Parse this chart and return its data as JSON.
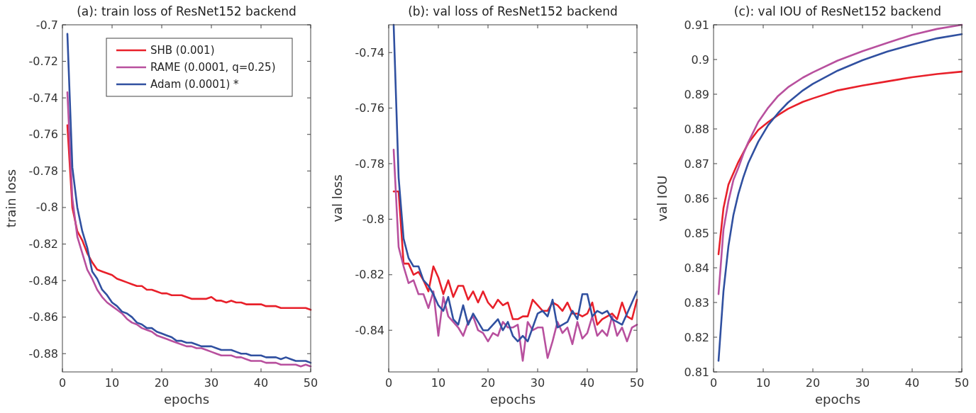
{
  "chart_data": [
    {
      "type": "line",
      "title": "(a): train loss of ResNet152 backend",
      "xlabel": "epochs",
      "ylabel": "train loss",
      "xlim": [
        0,
        50
      ],
      "xticks": [
        0,
        10,
        20,
        30,
        40,
        50
      ],
      "ylim": [
        -0.89,
        -0.7
      ],
      "yticks": [
        -0.88,
        -0.86,
        -0.84,
        -0.82,
        -0.8,
        -0.78,
        -0.76,
        -0.74,
        -0.72,
        -0.7
      ],
      "legend": "top right",
      "x": [
        1,
        2,
        3,
        4,
        5,
        6,
        7,
        8,
        9,
        10,
        11,
        12,
        13,
        14,
        15,
        16,
        17,
        18,
        19,
        20,
        21,
        22,
        23,
        24,
        25,
        26,
        27,
        28,
        29,
        30,
        31,
        32,
        33,
        34,
        35,
        36,
        37,
        38,
        39,
        40,
        41,
        42,
        43,
        44,
        45,
        46,
        47,
        48,
        49,
        50
      ],
      "series": [
        {
          "name": "SHB (0.001)",
          "color": "#e8202a",
          "values": [
            -0.755,
            -0.8,
            -0.813,
            -0.818,
            -0.825,
            -0.83,
            -0.834,
            -0.835,
            -0.836,
            -0.837,
            -0.839,
            -0.84,
            -0.841,
            -0.842,
            -0.843,
            -0.843,
            -0.845,
            -0.845,
            -0.846,
            -0.847,
            -0.847,
            -0.848,
            -0.848,
            -0.848,
            -0.849,
            -0.85,
            -0.85,
            -0.85,
            -0.85,
            -0.849,
            -0.851,
            -0.851,
            -0.852,
            -0.851,
            -0.852,
            -0.852,
            -0.853,
            -0.853,
            -0.853,
            -0.853,
            -0.854,
            -0.854,
            -0.854,
            -0.855,
            -0.855,
            -0.855,
            -0.855,
            -0.855,
            -0.855,
            -0.856
          ]
        },
        {
          "name": "RAME (0.0001, q=0.25)",
          "color": "#b8509e",
          "values": [
            -0.737,
            -0.795,
            -0.816,
            -0.825,
            -0.834,
            -0.839,
            -0.845,
            -0.849,
            -0.852,
            -0.854,
            -0.856,
            -0.858,
            -0.861,
            -0.863,
            -0.864,
            -0.866,
            -0.867,
            -0.868,
            -0.87,
            -0.871,
            -0.872,
            -0.873,
            -0.874,
            -0.875,
            -0.876,
            -0.876,
            -0.877,
            -0.877,
            -0.878,
            -0.879,
            -0.88,
            -0.881,
            -0.881,
            -0.881,
            -0.882,
            -0.882,
            -0.883,
            -0.884,
            -0.884,
            -0.884,
            -0.885,
            -0.885,
            -0.885,
            -0.886,
            -0.886,
            -0.886,
            -0.886,
            -0.887,
            -0.886,
            -0.887
          ]
        },
        {
          "name": "Adam (0.0001) *",
          "color": "#3050a0",
          "values": [
            -0.705,
            -0.778,
            -0.8,
            -0.813,
            -0.822,
            -0.835,
            -0.839,
            -0.845,
            -0.848,
            -0.852,
            -0.854,
            -0.857,
            -0.858,
            -0.86,
            -0.863,
            -0.864,
            -0.866,
            -0.866,
            -0.868,
            -0.869,
            -0.87,
            -0.871,
            -0.873,
            -0.873,
            -0.874,
            -0.874,
            -0.875,
            -0.876,
            -0.876,
            -0.876,
            -0.877,
            -0.878,
            -0.878,
            -0.878,
            -0.879,
            -0.88,
            -0.88,
            -0.881,
            -0.881,
            -0.881,
            -0.882,
            -0.882,
            -0.882,
            -0.883,
            -0.882,
            -0.883,
            -0.884,
            -0.884,
            -0.884,
            -0.885
          ]
        }
      ]
    },
    {
      "type": "line",
      "title": "(b): val loss of ResNet152 backend",
      "xlabel": "epochs",
      "ylabel": "val loss",
      "xlim": [
        0,
        50
      ],
      "xticks": [
        0,
        10,
        20,
        30,
        40,
        50
      ],
      "ylim": [
        -0.855,
        -0.73
      ],
      "yticks": [
        -0.84,
        -0.82,
        -0.8,
        -0.78,
        -0.76,
        -0.74
      ],
      "x": [
        1,
        2,
        3,
        4,
        5,
        6,
        7,
        8,
        9,
        10,
        11,
        12,
        13,
        14,
        15,
        16,
        17,
        18,
        19,
        20,
        21,
        22,
        23,
        24,
        25,
        26,
        27,
        28,
        29,
        30,
        31,
        32,
        33,
        34,
        35,
        36,
        37,
        38,
        39,
        40,
        41,
        42,
        43,
        44,
        45,
        46,
        47,
        48,
        49,
        50
      ],
      "series": [
        {
          "color": "#e8202a",
          "values": [
            -0.79,
            -0.79,
            -0.816,
            -0.816,
            -0.82,
            -0.819,
            -0.822,
            -0.826,
            -0.817,
            -0.821,
            -0.827,
            -0.822,
            -0.828,
            -0.824,
            -0.824,
            -0.829,
            -0.826,
            -0.83,
            -0.826,
            -0.83,
            -0.832,
            -0.829,
            -0.831,
            -0.83,
            -0.836,
            -0.836,
            -0.835,
            -0.835,
            -0.829,
            -0.831,
            -0.833,
            -0.833,
            -0.83,
            -0.831,
            -0.833,
            -0.83,
            -0.834,
            -0.834,
            -0.835,
            -0.834,
            -0.83,
            -0.838,
            -0.836,
            -0.835,
            -0.834,
            -0.836,
            -0.83,
            -0.835,
            -0.836,
            -0.829
          ]
        },
        {
          "color": "#b8509e",
          "values": [
            -0.775,
            -0.81,
            -0.817,
            -0.823,
            -0.822,
            -0.827,
            -0.827,
            -0.832,
            -0.826,
            -0.842,
            -0.828,
            -0.835,
            -0.837,
            -0.839,
            -0.842,
            -0.837,
            -0.835,
            -0.84,
            -0.841,
            -0.844,
            -0.841,
            -0.842,
            -0.837,
            -0.839,
            -0.839,
            -0.838,
            -0.851,
            -0.837,
            -0.84,
            -0.839,
            -0.839,
            -0.85,
            -0.844,
            -0.837,
            -0.841,
            -0.839,
            -0.845,
            -0.837,
            -0.843,
            -0.841,
            -0.835,
            -0.842,
            -0.84,
            -0.842,
            -0.835,
            -0.842,
            -0.839,
            -0.844,
            -0.839,
            -0.838
          ]
        },
        {
          "color": "#3050a0",
          "values": [
            -0.73,
            -0.785,
            -0.807,
            -0.814,
            -0.817,
            -0.817,
            -0.822,
            -0.824,
            -0.827,
            -0.831,
            -0.833,
            -0.828,
            -0.836,
            -0.838,
            -0.831,
            -0.838,
            -0.834,
            -0.837,
            -0.84,
            -0.84,
            -0.838,
            -0.836,
            -0.84,
            -0.837,
            -0.842,
            -0.844,
            -0.842,
            -0.844,
            -0.839,
            -0.834,
            -0.833,
            -0.835,
            -0.829,
            -0.839,
            -0.838,
            -0.837,
            -0.833,
            -0.836,
            -0.827,
            -0.827,
            -0.835,
            -0.833,
            -0.834,
            -0.833,
            -0.836,
            -0.837,
            -0.838,
            -0.834,
            -0.83,
            -0.826
          ]
        }
      ]
    },
    {
      "type": "line",
      "title": "(c): val IOU of ResNet152 backend",
      "xlabel": "epochs",
      "ylabel": "val IOU",
      "xlim": [
        0,
        50
      ],
      "xticks": [
        0,
        10,
        20,
        30,
        40,
        50
      ],
      "ylim": [
        0.81,
        0.91
      ],
      "yticks": [
        0.81,
        0.82,
        0.83,
        0.84,
        0.85,
        0.86,
        0.87,
        0.88,
        0.89,
        0.9,
        0.91
      ],
      "series": [
        {
          "color": "#e8202a",
          "x": [
            1,
            2,
            3,
            5,
            7,
            9,
            11,
            13,
            15,
            18,
            20,
            25,
            30,
            35,
            40,
            45,
            50
          ],
          "values": [
            0.8439,
            0.8572,
            0.864,
            0.8705,
            0.8759,
            0.8797,
            0.882,
            0.884,
            0.8858,
            0.8878,
            0.8888,
            0.8911,
            0.8925,
            0.8937,
            0.8949,
            0.8958,
            0.8965
          ]
        },
        {
          "color": "#b8509e",
          "x": [
            1,
            2,
            3,
            4,
            5,
            6,
            7,
            9,
            11,
            13,
            15,
            18,
            20,
            25,
            30,
            35,
            40,
            45,
            50
          ],
          "values": [
            0.8324,
            0.851,
            0.8592,
            0.8653,
            0.8688,
            0.8728,
            0.8762,
            0.882,
            0.8861,
            0.8895,
            0.892,
            0.8948,
            0.8963,
            0.8997,
            0.9024,
            0.9048,
            0.9071,
            0.9088,
            0.91
          ]
        },
        {
          "color": "#3050a0",
          "x": [
            1,
            2,
            3,
            4,
            5,
            6,
            7,
            9,
            11,
            13,
            15,
            18,
            20,
            25,
            30,
            35,
            40,
            45,
            50
          ],
          "values": [
            0.8132,
            0.8333,
            0.8463,
            0.8552,
            0.8613,
            0.8661,
            0.8702,
            0.8763,
            0.8811,
            0.8846,
            0.8876,
            0.8911,
            0.893,
            0.8968,
            0.8998,
            0.9023,
            0.9043,
            0.9061,
            0.9073
          ]
        }
      ]
    }
  ]
}
